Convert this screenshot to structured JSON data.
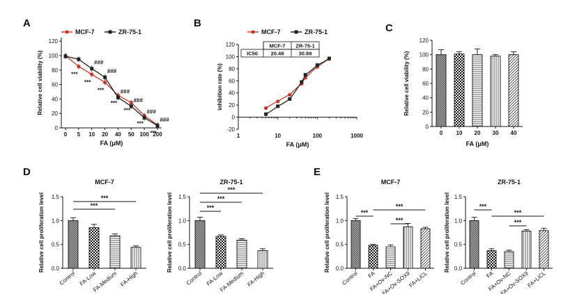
{
  "chart_data": [
    {
      "panel": "A",
      "type": "line",
      "x_tick_labels": [
        "0",
        "5",
        "10",
        "20",
        "40",
        "50",
        "100",
        "200"
      ],
      "ylabel": "Relative cell viability (%)",
      "xlabel": "FA (μM)",
      "ylim": [
        0,
        125
      ],
      "yticks": [
        0,
        20,
        40,
        60,
        80,
        100,
        120
      ],
      "legend_position": "top",
      "series": [
        {
          "name": "MCF-7",
          "color": "#c0392b",
          "marker": "circle",
          "values": [
            100,
            85,
            74,
            63,
            45,
            35,
            17,
            4
          ],
          "annotations": [
            "",
            "***",
            "***",
            "***",
            "***",
            "***",
            "***",
            "***"
          ]
        },
        {
          "name": "ZR-75-1",
          "color": "#222222",
          "marker": "square",
          "values": [
            99,
            95,
            82,
            70,
            42,
            30,
            14,
            3
          ],
          "annotations": [
            "",
            "",
            "###",
            "###",
            "###",
            "###",
            "###",
            "###"
          ]
        }
      ]
    },
    {
      "panel": "B",
      "type": "scatter",
      "ylabel": "inhibition rate (%)",
      "xlabel": "FA (μM)",
      "xscale": "log",
      "xlim": [
        1,
        1000
      ],
      "x_tick_labels": [
        "1",
        "10",
        "100",
        "1000"
      ],
      "ylim": [
        -20,
        120
      ],
      "yticks": [
        -20,
        0,
        20,
        40,
        60,
        80,
        100,
        120
      ],
      "legend_position": "top",
      "series": [
        {
          "name": "MCF-7",
          "color": "#c0392b",
          "marker": "circle",
          "x": [
            5,
            10,
            20,
            40,
            50,
            100,
            200
          ],
          "y": [
            15,
            26,
            37,
            55,
            65,
            83,
            96
          ]
        },
        {
          "name": "ZR-75-1",
          "color": "#222222",
          "marker": "square",
          "x": [
            5,
            10,
            20,
            40,
            50,
            100,
            200
          ],
          "y": [
            5,
            18,
            30,
            58,
            70,
            86,
            97
          ]
        }
      ],
      "table": {
        "header": [
          "",
          "MCF-7",
          "ZR-75-1"
        ],
        "rows": [
          [
            "IC50",
            "20.48",
            "30.89"
          ]
        ]
      }
    },
    {
      "panel": "C",
      "type": "bar",
      "categories": [
        "0",
        "10",
        "20",
        "30",
        "40"
      ],
      "values": [
        100,
        101,
        100,
        98,
        100
      ],
      "errors": [
        7,
        3,
        8,
        2,
        4
      ],
      "patterns": [
        "grid-dark",
        "check",
        "horizontal",
        "vertical",
        "diagonal"
      ],
      "ylabel": "Relative cell viability (%)",
      "xlabel": "FA (μM)",
      "ylim": [
        0,
        120
      ],
      "yticks": [
        0,
        20,
        40,
        60,
        80,
        100,
        120
      ]
    },
    {
      "panel": "D",
      "title": "MCF-7",
      "type": "bar",
      "categories": [
        "Control",
        "FA-Low",
        "FA-Medium",
        "FA-High"
      ],
      "values": [
        1.0,
        0.85,
        0.68,
        0.44
      ],
      "errors": [
        0.06,
        0.07,
        0.04,
        0.03
      ],
      "patterns": [
        "grid-dark",
        "check",
        "horizontal",
        "vertical"
      ],
      "ylabel": "Relative cell proliferation level",
      "ylim": [
        0,
        1.5
      ],
      "yticks": [
        "0.0",
        "0.5",
        "1.0",
        "1.5"
      ],
      "significance": [
        {
          "from": 0,
          "to": 2,
          "label": "***"
        },
        {
          "from": 0,
          "to": 3,
          "label": "***"
        }
      ]
    },
    {
      "panel": "D",
      "title": "ZR-75-1",
      "type": "bar",
      "categories": [
        "Control",
        "FA-Low",
        "FA-Medium",
        "FA-High"
      ],
      "values": [
        1.0,
        0.67,
        0.59,
        0.37
      ],
      "errors": [
        0.07,
        0.03,
        0.03,
        0.04
      ],
      "patterns": [
        "grid-dark",
        "check",
        "horizontal",
        "vertical"
      ],
      "ylabel": "Relative cell proliferation level",
      "ylim": [
        0,
        1.5
      ],
      "yticks": [
        "0.0",
        "0.5",
        "1.0",
        "1.5"
      ],
      "significance": [
        {
          "from": 0,
          "to": 1,
          "label": "***"
        },
        {
          "from": 0,
          "to": 2,
          "label": "***"
        },
        {
          "from": 0,
          "to": 3,
          "label": "***"
        }
      ]
    },
    {
      "panel": "E",
      "title": "MCF-7",
      "type": "bar",
      "categories": [
        "Control",
        "FA",
        "FA+Ov-NC",
        "FA+Ov-SOX9",
        "FA+LiCL"
      ],
      "values": [
        1.0,
        0.48,
        0.45,
        0.87,
        0.83
      ],
      "errors": [
        0.04,
        0.02,
        0.04,
        0.07,
        0.03
      ],
      "patterns": [
        "grid-dark",
        "check",
        "horizontal",
        "vertical",
        "diagonal"
      ],
      "ylabel": "Relative cell proliferation level",
      "ylim": [
        0,
        1.5
      ],
      "yticks": [
        "0.0",
        "0.5",
        "1.0",
        "1.5"
      ],
      "significance": [
        {
          "from": 0,
          "to": 1,
          "label": "***"
        },
        {
          "from": 2,
          "to": 3,
          "label": "***"
        },
        {
          "from": 1,
          "to": 4,
          "label": "***"
        }
      ]
    },
    {
      "panel": "E",
      "title": "ZR-75-1",
      "type": "bar",
      "categories": [
        "Control",
        "FA",
        "FA+Ov-NC",
        "FA+Ov-SOX9",
        "FA+LiCL"
      ],
      "values": [
        1.0,
        0.37,
        0.35,
        0.78,
        0.79
      ],
      "errors": [
        0.07,
        0.04,
        0.03,
        0.03,
        0.05
      ],
      "patterns": [
        "grid-dark",
        "check",
        "horizontal",
        "vertical",
        "diagonal"
      ],
      "ylabel": "Relative cell proliferation level",
      "ylim": [
        0,
        1.5
      ],
      "yticks": [
        "0.0",
        "0.5",
        "1.0",
        "1.5"
      ],
      "significance": [
        {
          "from": 0,
          "to": 1,
          "label": "***"
        },
        {
          "from": 2,
          "to": 3,
          "label": "***"
        },
        {
          "from": 1,
          "to": 4,
          "label": "***"
        }
      ]
    }
  ]
}
